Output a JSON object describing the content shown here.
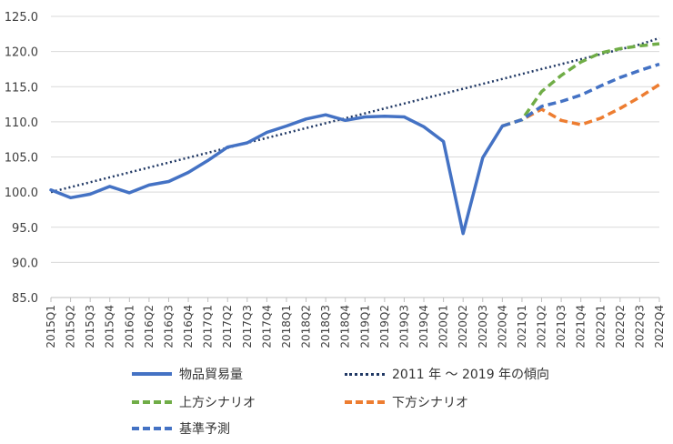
{
  "chart_data": {
    "type": "line",
    "title": "",
    "xlabel": "",
    "ylabel": "",
    "ylim": [
      85,
      125
    ],
    "yticks": [
      "85.0",
      "90.0",
      "95.0",
      "100.0",
      "105.0",
      "110.0",
      "115.0",
      "120.0",
      "125.0"
    ],
    "categories": [
      "2015Q1",
      "2015Q2",
      "2015Q3",
      "2015Q4",
      "2016Q1",
      "2016Q2",
      "2016Q3",
      "2016Q4",
      "2017Q1",
      "2017Q2",
      "2017Q3",
      "2017Q4",
      "2018Q1",
      "2018Q2",
      "2018Q3",
      "2018Q4",
      "2019Q1",
      "2019Q2",
      "2019Q3",
      "2019Q4",
      "2020Q1",
      "2020Q2",
      "2020Q3",
      "2020Q4",
      "2021Q1",
      "2021Q2",
      "2021Q3",
      "2021Q4",
      "2022Q1",
      "2022Q2",
      "2022Q3",
      "2022Q4"
    ],
    "grid": "horizontal",
    "legend_position": "bottom",
    "series": [
      {
        "name": "物品貿易量",
        "color": "#4472C4",
        "style": "solid",
        "values": [
          100.3,
          99.2,
          99.7,
          100.8,
          99.9,
          101.0,
          101.5,
          102.8,
          104.5,
          106.4,
          107.0,
          108.5,
          109.4,
          110.4,
          111.0,
          110.2,
          110.7,
          110.8,
          110.7,
          109.3,
          107.2,
          94.1,
          104.9,
          109.4,
          null,
          null,
          null,
          null,
          null,
          null,
          null,
          null
        ]
      },
      {
        "name": "2011 年 ～ 2019 年の傾向",
        "color": "#203864",
        "style": "dotted",
        "values": [
          100.0,
          100.7,
          101.4,
          102.1,
          102.8,
          103.5,
          104.2,
          104.9,
          105.6,
          106.3,
          107.0,
          107.7,
          108.4,
          109.1,
          109.8,
          110.5,
          111.2,
          111.9,
          112.6,
          113.3,
          114.0,
          114.7,
          115.4,
          116.1,
          116.8,
          117.5,
          118.2,
          118.9,
          119.6,
          120.3,
          121.0,
          121.9
        ]
      },
      {
        "name": "上方シナリオ",
        "color": "#70AD47",
        "style": "dashed",
        "values": [
          null,
          null,
          null,
          null,
          null,
          null,
          null,
          null,
          null,
          null,
          null,
          null,
          null,
          null,
          null,
          null,
          null,
          null,
          null,
          null,
          null,
          null,
          null,
          109.4,
          110.3,
          114.3,
          116.6,
          118.5,
          119.8,
          120.4,
          120.8,
          121.1
        ]
      },
      {
        "name": "下方シナリオ",
        "color": "#ED7D31",
        "style": "dashed",
        "values": [
          null,
          null,
          null,
          null,
          null,
          null,
          null,
          null,
          null,
          null,
          null,
          null,
          null,
          null,
          null,
          null,
          null,
          null,
          null,
          null,
          null,
          null,
          null,
          109.4,
          110.3,
          111.8,
          110.2,
          109.6,
          110.5,
          111.9,
          113.5,
          115.3
        ]
      },
      {
        "name": "基準予測",
        "color": "#4472C4",
        "style": "dashed",
        "values": [
          null,
          null,
          null,
          null,
          null,
          null,
          null,
          null,
          null,
          null,
          null,
          null,
          null,
          null,
          null,
          null,
          null,
          null,
          null,
          null,
          null,
          null,
          null,
          109.4,
          110.3,
          112.2,
          112.9,
          113.8,
          115.1,
          116.3,
          117.3,
          118.2
        ]
      }
    ]
  }
}
